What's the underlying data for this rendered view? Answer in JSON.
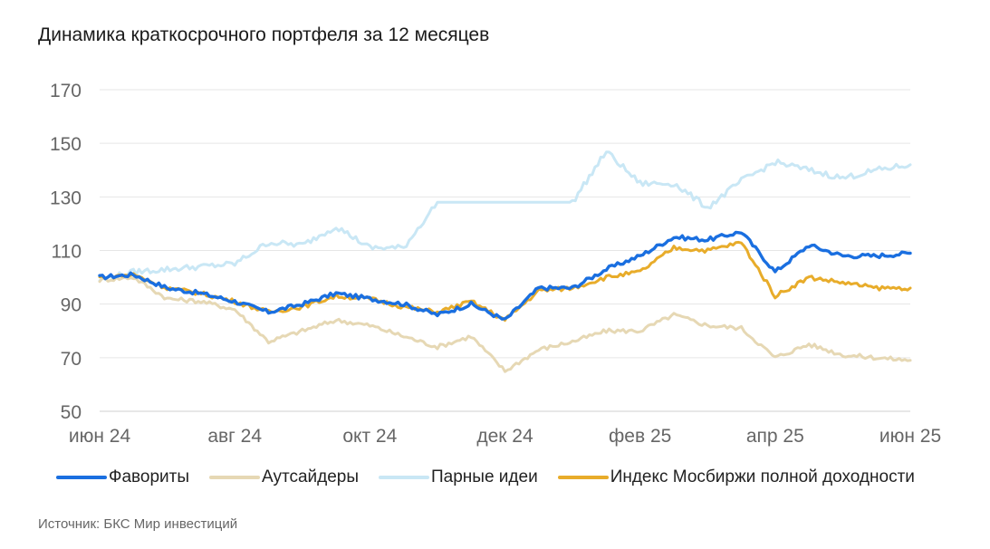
{
  "title": "Динамика краткосрочного портфеля за 12 месяцев",
  "source": "Источник: БКС Мир инвестиций",
  "colors": {
    "favorites": "#1a6fe0",
    "outsiders": "#e6d8b4",
    "pairs": "#c9e7f5",
    "index": "#e8ac2a",
    "grid": "#e6e6e6",
    "tick_text": "#666666"
  },
  "chart_data": {
    "type": "line",
    "title": "Динамика краткосрочного портфеля за 12 месяцев",
    "xlabel": "",
    "ylabel": "",
    "ylim": [
      50,
      170
    ],
    "yticks": [
      50,
      70,
      90,
      110,
      130,
      150,
      170
    ],
    "x_range": [
      "июн 24",
      "июн 25"
    ],
    "x_ticks": [
      "июн 24",
      "авг 24",
      "окт 24",
      "дек 24",
      "фев 25",
      "апр 25",
      "июн 25"
    ],
    "x_tick_positions": [
      0,
      2,
      4,
      6,
      8,
      10,
      12
    ],
    "grid": "horizontal",
    "legend": "bottom",
    "x": [
      0,
      0.5,
      1,
      1.5,
      2,
      2.5,
      3,
      3.5,
      4,
      4.5,
      5,
      5.5,
      6,
      6.5,
      7,
      7.5,
      8,
      8.5,
      9,
      9.5,
      10,
      10.5,
      11,
      11.5,
      12
    ],
    "series": [
      {
        "name": "Фавориты",
        "color": "#1a6fe0",
        "values": [
          100,
          101,
          96,
          94,
          91,
          87,
          90,
          94,
          92,
          90,
          86,
          90,
          84,
          96,
          96,
          103,
          108,
          115,
          114,
          117,
          102,
          112,
          108,
          108,
          109
        ]
      },
      {
        "name": "Аутсайдеры",
        "color": "#e6d8b4",
        "values": [
          99,
          100,
          92,
          91,
          88,
          76,
          80,
          84,
          82,
          78,
          74,
          78,
          65,
          73,
          76,
          80,
          80,
          86,
          82,
          81,
          70,
          75,
          71,
          70,
          69
        ]
      },
      {
        "name": "Парные идеи",
        "color": "#c9e7f5",
        "values": [
          99,
          102,
          103,
          104,
          105,
          113,
          112,
          119,
          111,
          111,
          128,
          128,
          128,
          128,
          128,
          147,
          135,
          135,
          126,
          136,
          143,
          140,
          137,
          140,
          142
        ]
      },
      {
        "name": "Индекс Мосбиржи полной доходности",
        "color": "#e8ac2a",
        "values": [
          100,
          101,
          96,
          94,
          91,
          87,
          89,
          93,
          92,
          89,
          87,
          91,
          84,
          95,
          96,
          100,
          102,
          111,
          110,
          113,
          93,
          100,
          98,
          96,
          96
        ]
      }
    ]
  }
}
